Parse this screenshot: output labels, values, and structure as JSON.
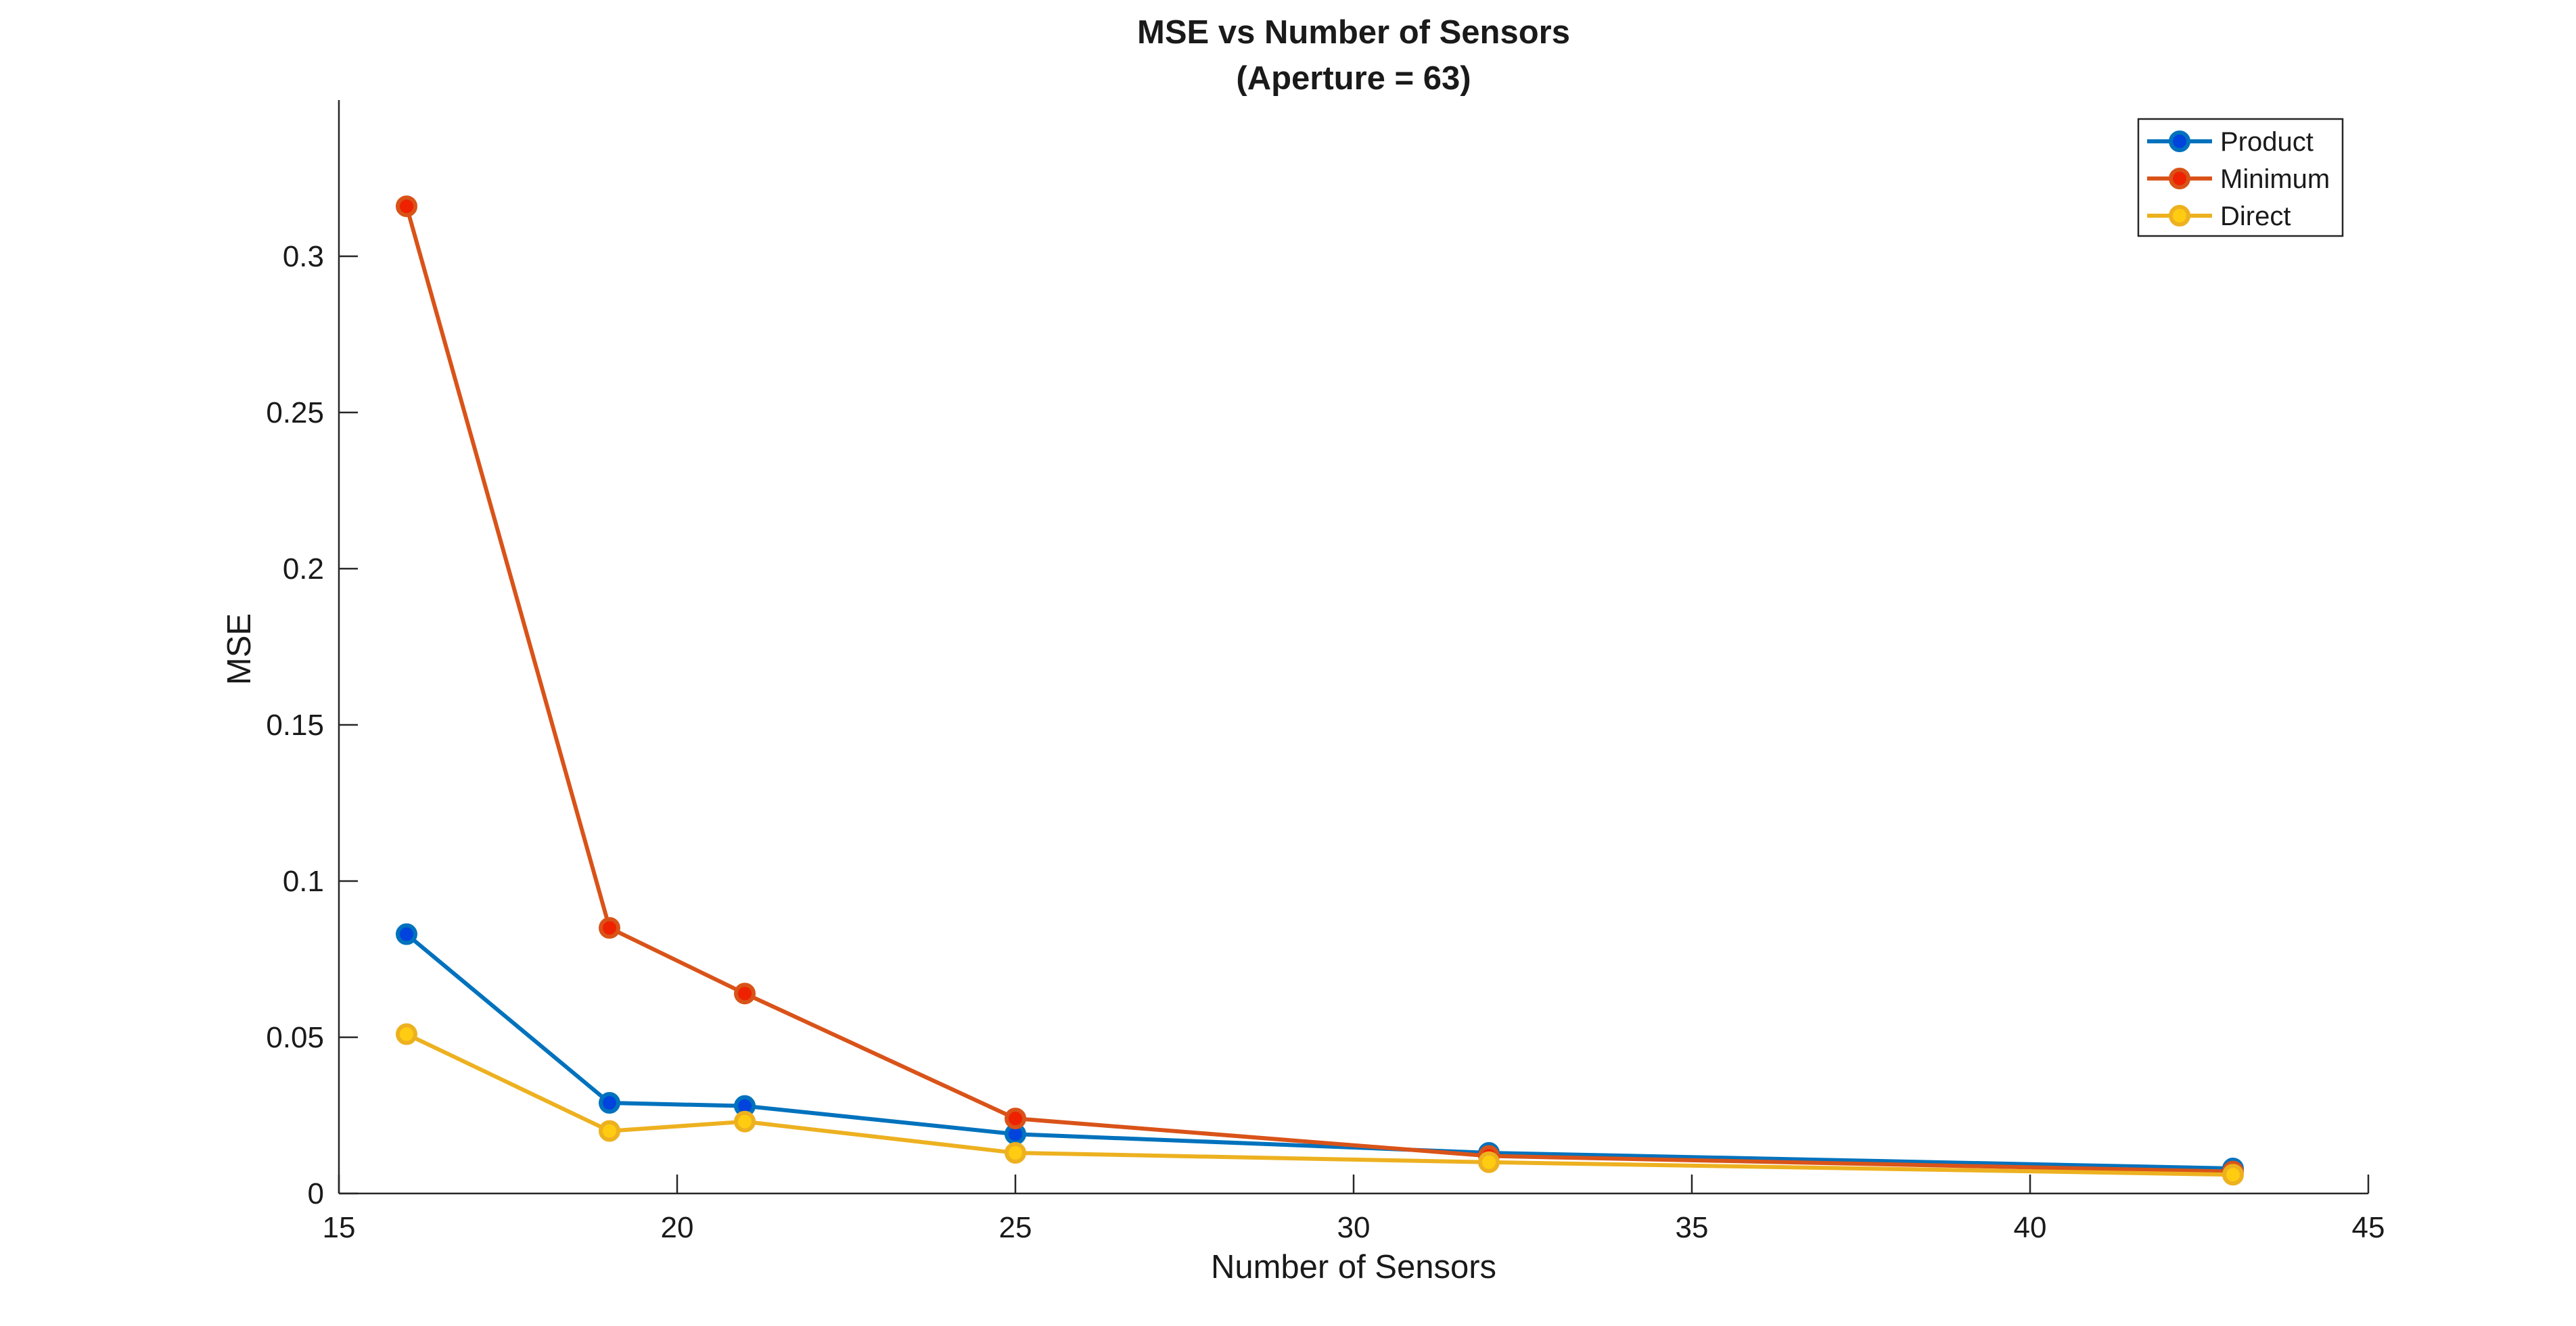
{
  "chart_data": {
    "type": "line",
    "title": "MSE vs Number of Sensors",
    "subtitle": "(Aperture = 63)",
    "xlabel": "Number of Sensors",
    "ylabel": "MSE",
    "xlim": [
      15,
      45
    ],
    "ylim": [
      0,
      0.35
    ],
    "xticks": [
      15,
      20,
      25,
      30,
      35,
      40,
      45
    ],
    "xtick_labels": [
      "15",
      "20",
      "25",
      "30",
      "35",
      "40",
      "45"
    ],
    "yticks": [
      0,
      0.05,
      0.1,
      0.15,
      0.2,
      0.25,
      0.3
    ],
    "ytick_labels": [
      "0",
      "0.05",
      "0.1",
      "0.15",
      "0.2",
      "0.25",
      "0.3"
    ],
    "grid": false,
    "legend_position": "top-right",
    "x": [
      16,
      19,
      21,
      25,
      32,
      43
    ],
    "series": [
      {
        "name": "Product",
        "color": "#0072BD",
        "marker_color": "#0044DD",
        "values": [
          0.083,
          0.029,
          0.028,
          0.019,
          0.013,
          0.008
        ]
      },
      {
        "name": "Minimum",
        "color": "#D95319",
        "marker_color": "#EE2200",
        "values": [
          0.316,
          0.085,
          0.064,
          0.024,
          0.012,
          0.007
        ]
      },
      {
        "name": "Direct",
        "color": "#EDB120",
        "marker_color": "#FFCC11",
        "values": [
          0.051,
          0.02,
          0.023,
          0.013,
          0.01,
          0.006
        ]
      }
    ]
  }
}
